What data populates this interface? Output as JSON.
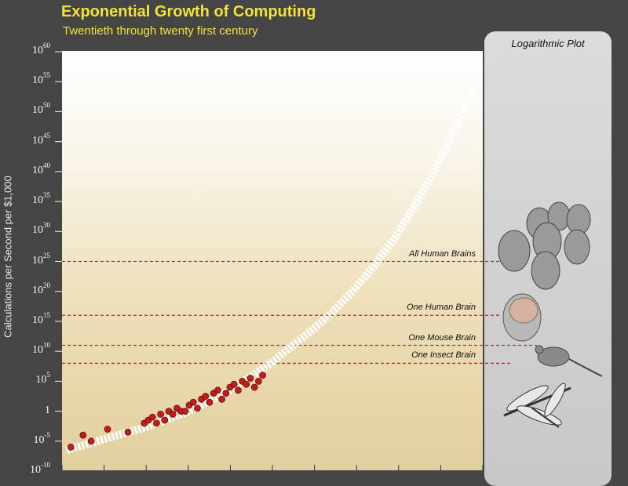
{
  "chart_data": {
    "type": "scatter",
    "title": "Exponential Growth of Computing",
    "subtitle": "Twentieth through twenty first century",
    "ylabel": "Calculations per Second per $1,000",
    "xlabel": "",
    "y_scale": "log",
    "ylim_exponent": [
      -10,
      60
    ],
    "y_ticks": [
      {
        "base": "10",
        "exp": "60"
      },
      {
        "base": "10",
        "exp": "55"
      },
      {
        "base": "10",
        "exp": "50"
      },
      {
        "base": "10",
        "exp": "45"
      },
      {
        "base": "10",
        "exp": "40"
      },
      {
        "base": "10",
        "exp": "35"
      },
      {
        "base": "10",
        "exp": "30"
      },
      {
        "base": "10",
        "exp": "25"
      },
      {
        "base": "10",
        "exp": "20"
      },
      {
        "base": "10",
        "exp": "15"
      },
      {
        "base": "10",
        "exp": "10"
      },
      {
        "base": "10",
        "exp": "5"
      },
      {
        "base": "1",
        "exp": ""
      },
      {
        "base": "10",
        "exp": "-5"
      },
      {
        "base": "10",
        "exp": "-10"
      }
    ],
    "panel_title": "Logarithmic Plot",
    "reference_lines": [
      {
        "label": "All Human Brains",
        "exp": 25
      },
      {
        "label": "One Human Brain",
        "exp": 16
      },
      {
        "label": "One Mouse Brain",
        "exp": 11
      },
      {
        "label": "One Insect Brain",
        "exp": 8
      }
    ],
    "series": [
      {
        "kind": "observed",
        "x_rel": [
          0.01,
          0.04,
          0.06,
          0.1,
          0.15,
          0.19,
          0.2,
          0.21,
          0.22,
          0.23,
          0.24,
          0.25,
          0.26,
          0.27,
          0.28,
          0.29,
          0.3,
          0.31,
          0.32,
          0.33,
          0.34,
          0.35,
          0.36,
          0.37,
          0.38,
          0.39,
          0.4,
          0.41,
          0.42,
          0.43,
          0.44,
          0.45,
          0.46,
          0.47,
          0.48
        ],
        "y_exp": [
          -6,
          -4,
          -5,
          -3,
          -3.5,
          -2,
          -1.5,
          -1,
          -2,
          -0.5,
          -1.5,
          0,
          -0.5,
          0.5,
          0,
          0,
          1,
          1.5,
          0.5,
          2,
          2.5,
          1.5,
          3,
          3.5,
          2,
          3,
          4,
          4.5,
          3.5,
          5,
          4.5,
          5.5,
          4,
          5,
          6
        ]
      },
      {
        "kind": "projected",
        "x_rel": [
          0.0,
          0.1,
          0.2,
          0.3,
          0.4,
          0.5,
          0.6,
          0.65,
          0.7,
          0.75,
          0.8,
          0.85,
          0.9,
          0.95,
          1.0
        ],
        "y_exp": [
          -6.5,
          -4.5,
          -2.5,
          0,
          3.5,
          8,
          13.5,
          16.5,
          20,
          24,
          28.5,
          34,
          40,
          47,
          54
        ]
      }
    ]
  }
}
